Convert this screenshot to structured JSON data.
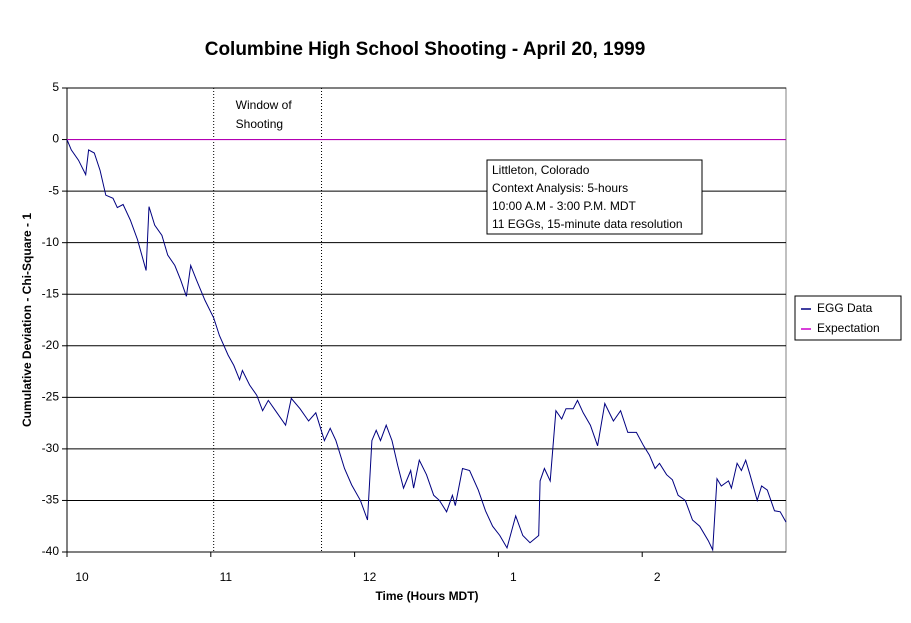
{
  "chart_data": {
    "type": "line",
    "title": "Columbine High School Shooting - April 20, 1999",
    "xlabel": "Time (Hours MDT)",
    "ylabel": "Cumulative Deviation - Chi-Square - 1",
    "xlim": [
      10,
      15
    ],
    "xticks": [
      10,
      11,
      12,
      {
        "value": 13,
        "label": "1"
      },
      {
        "value": 14,
        "label": "2"
      }
    ],
    "ylim": [
      -40,
      5
    ],
    "yticks": [
      5,
      0,
      -5,
      -10,
      -15,
      -20,
      -25,
      -30,
      -35,
      -40
    ],
    "grid": true,
    "legend": "right",
    "series": [
      {
        "name": "EGG Data",
        "color": "#000080",
        "x": [
          10.0,
          10.03,
          10.08,
          10.13,
          10.15,
          10.19,
          10.23,
          10.27,
          10.32,
          10.35,
          10.39,
          10.44,
          10.49,
          10.55,
          10.57,
          10.61,
          10.66,
          10.7,
          10.75,
          10.79,
          10.83,
          10.86,
          10.9,
          10.96,
          11.02,
          11.06,
          11.12,
          11.16,
          11.2,
          11.22,
          11.27,
          11.32,
          11.36,
          11.4,
          11.45,
          11.52,
          11.56,
          11.62,
          11.68,
          11.73,
          11.79,
          11.83,
          11.87,
          11.93,
          11.98,
          12.04,
          12.09,
          12.12,
          12.15,
          12.18,
          12.22,
          12.26,
          12.3,
          12.34,
          12.39,
          12.41,
          12.45,
          12.5,
          12.55,
          12.59,
          12.64,
          12.68,
          12.7,
          12.75,
          12.8,
          12.86,
          12.91,
          12.96,
          13.01,
          13.06,
          13.12,
          13.17,
          13.22,
          13.28,
          13.29,
          13.32,
          13.36,
          13.4,
          13.44,
          13.47,
          13.52,
          13.55,
          13.59,
          13.64,
          13.69,
          13.74,
          13.8,
          13.85,
          13.9,
          13.96,
          14.01,
          14.05,
          14.09,
          14.12,
          14.17,
          14.21,
          14.25,
          14.3,
          14.35,
          14.4,
          14.46,
          14.49,
          14.52,
          14.55,
          14.6,
          14.62,
          14.66,
          14.69,
          14.72,
          14.75,
          14.8,
          14.83,
          14.87,
          14.92,
          14.96,
          15.0
        ],
        "values": [
          0,
          -1,
          -2,
          -3.4,
          -1,
          -1.3,
          -3,
          -5.4,
          -5.7,
          -6.6,
          -6.3,
          -7.8,
          -9.7,
          -12.7,
          -6.5,
          -8.3,
          -9.3,
          -11.2,
          -12.2,
          -13.6,
          -15.2,
          -12.2,
          -13.6,
          -15.6,
          -17.3,
          -19,
          -20.9,
          -21.9,
          -23.3,
          -22.4,
          -23.8,
          -24.8,
          -26.3,
          -25.3,
          -26.3,
          -27.7,
          -25.1,
          -26.1,
          -27.3,
          -26.5,
          -29.2,
          -28,
          -29.2,
          -31.9,
          -33.5,
          -35,
          -36.9,
          -29.2,
          -28.2,
          -29.2,
          -27.7,
          -29.2,
          -31.6,
          -33.8,
          -32.1,
          -33.8,
          -31.1,
          -32.5,
          -34.5,
          -35,
          -36.1,
          -34.5,
          -35.5,
          -31.9,
          -32.1,
          -34,
          -36,
          -37.5,
          -38.4,
          -39.6,
          -36.5,
          -38.4,
          -39.1,
          -38.4,
          -33.1,
          -31.9,
          -33.1,
          -26.3,
          -27.1,
          -26.1,
          -26.1,
          -25.3,
          -26.5,
          -27.7,
          -29.7,
          -25.6,
          -27.3,
          -26.3,
          -28.4,
          -28.4,
          -29.7,
          -30.6,
          -31.9,
          -31.4,
          -32.5,
          -33,
          -34.5,
          -35,
          -36.9,
          -37.5,
          -38.9,
          -39.8,
          -32.9,
          -33.6,
          -33.1,
          -33.8,
          -31.4,
          -32.1,
          -31.1,
          -32.5,
          -35,
          -33.6,
          -34,
          -36,
          -36.1,
          -37.1
        ]
      },
      {
        "name": "Expectation",
        "color": "#cc00cc",
        "x": [
          10,
          15
        ],
        "values": [
          0,
          0
        ]
      }
    ],
    "window": {
      "label": [
        "Window of",
        "Shooting"
      ],
      "x": [
        11.02,
        11.77
      ]
    },
    "annotation": [
      "Littleton, Colorado",
      "Context Analysis: 5-hours",
      "10:00 A.M - 3:00 P.M. MDT",
      "11 EGGs, 15-minute data resolution"
    ]
  }
}
